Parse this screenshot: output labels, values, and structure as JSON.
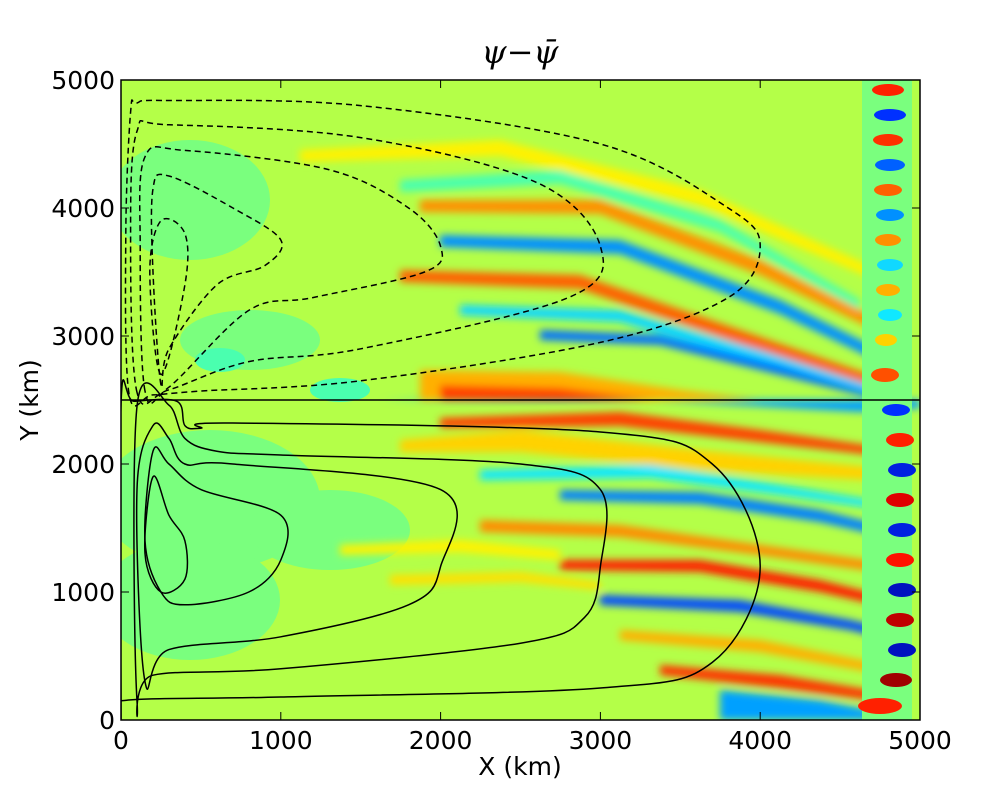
{
  "chart_data": {
    "type": "heatmap",
    "title": "ψ−ψ̄",
    "xlabel": "X (km)",
    "ylabel": "Y (km)",
    "xlim": [
      0,
      5000
    ],
    "ylim": [
      0,
      5000
    ],
    "xticks": [
      "0",
      "1000",
      "2000",
      "3000",
      "4000",
      "5000"
    ],
    "yticks": [
      "0",
      "1000",
      "2000",
      "3000",
      "4000",
      "5000"
    ],
    "colormap": "jet",
    "divider_y": 2500,
    "background_color": "#b4ff48",
    "contours": {
      "lower_solid": [
        [
          [
            0,
            20
          ],
          [
            0,
            2470
          ],
          [
            80,
            2490
          ],
          [
            350,
            2490
          ],
          [
            400,
            2300
          ],
          [
            500,
            2280
          ],
          [
            700,
            2320
          ],
          [
            3000,
            2250
          ],
          [
            3700,
            2000
          ],
          [
            4000,
            1200
          ],
          [
            3700,
            450
          ],
          [
            3000,
            250
          ],
          [
            1000,
            180
          ],
          [
            0,
            150
          ]
        ],
        [
          [
            100,
            150
          ],
          [
            100,
            2450
          ],
          [
            300,
            2460
          ],
          [
            400,
            2200
          ],
          [
            600,
            2100
          ],
          [
            1000,
            2070
          ],
          [
            2500,
            2000
          ],
          [
            3000,
            1800
          ],
          [
            3000,
            1200
          ],
          [
            2900,
            800
          ],
          [
            2500,
            600
          ],
          [
            1000,
            400
          ],
          [
            200,
            350
          ]
        ],
        [
          [
            150,
            300
          ],
          [
            100,
            1800
          ],
          [
            200,
            2300
          ],
          [
            300,
            2200
          ],
          [
            400,
            2000
          ],
          [
            700,
            2000
          ],
          [
            2000,
            1800
          ],
          [
            2000,
            1200
          ],
          [
            1800,
            900
          ],
          [
            1000,
            650
          ],
          [
            300,
            550
          ]
        ],
        [
          [
            250,
            1000
          ],
          [
            150,
            1400
          ],
          [
            200,
            2100
          ],
          [
            300,
            2000
          ],
          [
            500,
            1800
          ],
          [
            1000,
            1600
          ],
          [
            1000,
            1250
          ],
          [
            800,
            1000
          ],
          [
            400,
            900
          ]
        ],
        [
          [
            250,
            1000
          ],
          [
            150,
            1300
          ],
          [
            200,
            1900
          ],
          [
            300,
            1600
          ],
          [
            400,
            1400
          ],
          [
            400,
            1100
          ]
        ]
      ],
      "upper_dashed": [
        [
          [
            50,
            2550
          ],
          [
            30,
            3800
          ],
          [
            60,
            4750
          ],
          [
            100,
            4820
          ],
          [
            300,
            4840
          ],
          [
            1500,
            4800
          ],
          [
            3000,
            4500
          ],
          [
            3800,
            4000
          ],
          [
            4000,
            3700
          ],
          [
            3800,
            3300
          ],
          [
            3000,
            2950
          ],
          [
            1500,
            2650
          ],
          [
            500,
            2570
          ],
          [
            200,
            2540
          ]
        ],
        [
          [
            100,
            2560
          ],
          [
            60,
            3800
          ],
          [
            100,
            4600
          ],
          [
            300,
            4650
          ],
          [
            1500,
            4550
          ],
          [
            2600,
            4200
          ],
          [
            3000,
            3700
          ],
          [
            2800,
            3300
          ],
          [
            1500,
            2900
          ],
          [
            800,
            2800
          ],
          [
            300,
            2580
          ]
        ],
        [
          [
            150,
            2570
          ],
          [
            120,
            3700
          ],
          [
            150,
            4400
          ],
          [
            400,
            4450
          ],
          [
            1300,
            4300
          ],
          [
            1800,
            4000
          ],
          [
            2000,
            3700
          ],
          [
            1900,
            3500
          ],
          [
            1200,
            3300
          ],
          [
            800,
            3200
          ],
          [
            300,
            2600
          ]
        ],
        [
          [
            250,
            2620
          ],
          [
            200,
            3500
          ],
          [
            200,
            4150
          ],
          [
            300,
            4250
          ],
          [
            700,
            4000
          ],
          [
            1000,
            3750
          ],
          [
            900,
            3550
          ],
          [
            600,
            3400
          ],
          [
            300,
            2900
          ]
        ],
        [
          [
            250,
            2700
          ],
          [
            180,
            3500
          ],
          [
            250,
            3900
          ],
          [
            400,
            3800
          ],
          [
            400,
            3400
          ]
        ]
      ]
    }
  }
}
